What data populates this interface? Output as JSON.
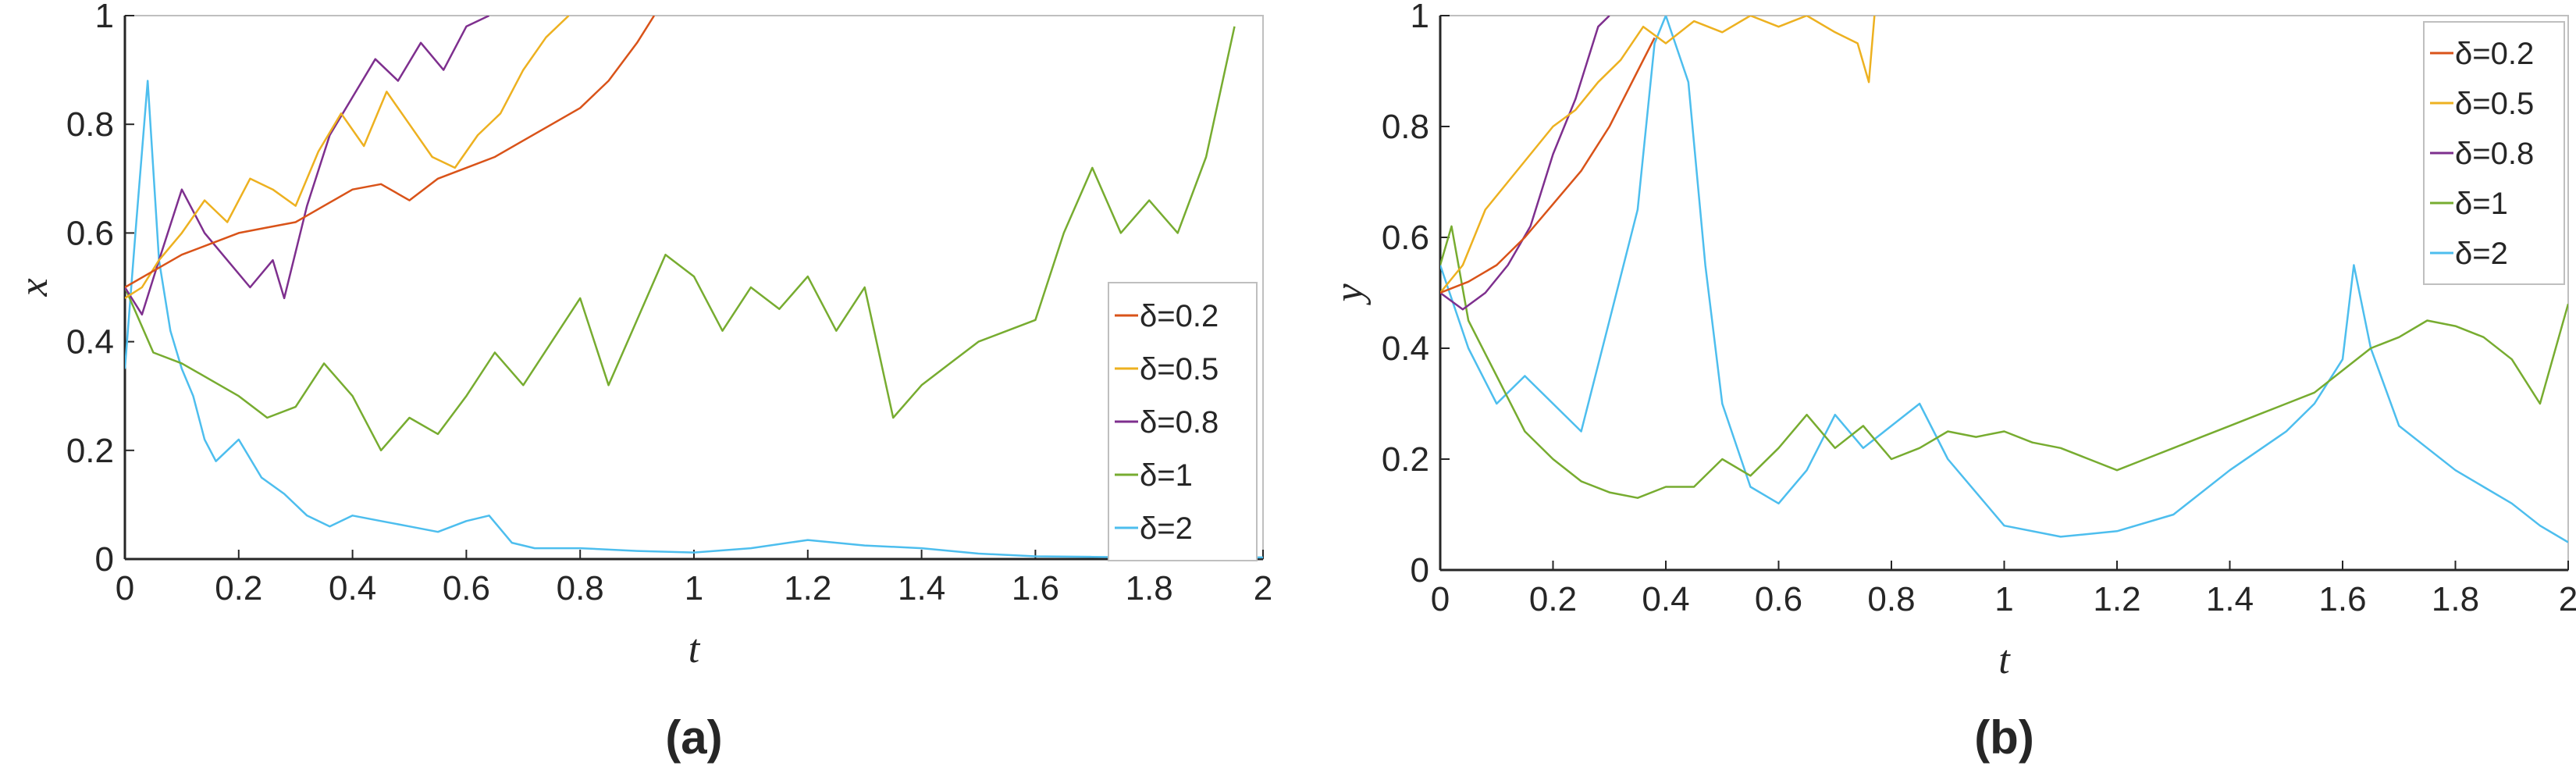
{
  "colors": {
    "d02": "#d95319",
    "d05": "#edb120",
    "d08": "#7e2f8e",
    "d1": "#77ac30",
    "d2": "#4dbeee",
    "axis": "#262626",
    "frame": "#bfbfbf"
  },
  "chart_data": [
    {
      "type": "line",
      "panel_label": "(a)",
      "xlabel": "t",
      "ylabel": "x",
      "xlim": [
        0,
        2
      ],
      "ylim": [
        0,
        1
      ],
      "xticks": [
        "0",
        "0.2",
        "0.4",
        "0.6",
        "0.8",
        "1",
        "1.2",
        "1.4",
        "1.6",
        "1.8",
        "2"
      ],
      "yticks": [
        "0",
        "0.2",
        "0.4",
        "0.6",
        "0.8",
        "1"
      ],
      "grid": false,
      "legend_position": "right-bottom",
      "series": [
        {
          "name": "δ=0.2",
          "color": "#d95319",
          "x": [
            0,
            0.05,
            0.1,
            0.15,
            0.2,
            0.25,
            0.3,
            0.35,
            0.4,
            0.45,
            0.5,
            0.55,
            0.6,
            0.65,
            0.7,
            0.75,
            0.8,
            0.85,
            0.9,
            0.93
          ],
          "y": [
            0.5,
            0.53,
            0.56,
            0.58,
            0.6,
            0.61,
            0.62,
            0.65,
            0.68,
            0.69,
            0.66,
            0.7,
            0.72,
            0.74,
            0.77,
            0.8,
            0.83,
            0.88,
            0.95,
            1.0
          ]
        },
        {
          "name": "δ=0.5",
          "color": "#edb120",
          "x": [
            0,
            0.03,
            0.06,
            0.1,
            0.14,
            0.18,
            0.22,
            0.26,
            0.3,
            0.34,
            0.38,
            0.42,
            0.46,
            0.5,
            0.54,
            0.58,
            0.62,
            0.66,
            0.7,
            0.74,
            0.78
          ],
          "y": [
            0.48,
            0.5,
            0.55,
            0.6,
            0.66,
            0.62,
            0.7,
            0.68,
            0.65,
            0.75,
            0.82,
            0.76,
            0.86,
            0.8,
            0.74,
            0.72,
            0.78,
            0.82,
            0.9,
            0.96,
            1.0
          ]
        },
        {
          "name": "δ=0.8",
          "color": "#7e2f8e",
          "x": [
            0,
            0.03,
            0.06,
            0.1,
            0.14,
            0.18,
            0.22,
            0.26,
            0.28,
            0.32,
            0.36,
            0.4,
            0.44,
            0.48,
            0.52,
            0.56,
            0.6,
            0.64
          ],
          "y": [
            0.5,
            0.45,
            0.55,
            0.68,
            0.6,
            0.55,
            0.5,
            0.55,
            0.48,
            0.65,
            0.78,
            0.85,
            0.92,
            0.88,
            0.95,
            0.9,
            0.98,
            1.0
          ]
        },
        {
          "name": "δ=1",
          "color": "#77ac30",
          "x": [
            0,
            0.05,
            0.1,
            0.15,
            0.2,
            0.25,
            0.3,
            0.35,
            0.4,
            0.45,
            0.5,
            0.55,
            0.6,
            0.65,
            0.7,
            0.75,
            0.8,
            0.85,
            0.9,
            0.95,
            1.0,
            1.05,
            1.1,
            1.15,
            1.2,
            1.25,
            1.3,
            1.35,
            1.4,
            1.45,
            1.5,
            1.55,
            1.6,
            1.65,
            1.7,
            1.75,
            1.8,
            1.85,
            1.9,
            1.95
          ],
          "y": [
            0.5,
            0.38,
            0.36,
            0.33,
            0.3,
            0.26,
            0.28,
            0.36,
            0.3,
            0.2,
            0.26,
            0.23,
            0.3,
            0.38,
            0.32,
            0.4,
            0.48,
            0.32,
            0.44,
            0.56,
            0.52,
            0.42,
            0.5,
            0.46,
            0.52,
            0.42,
            0.5,
            0.26,
            0.32,
            0.36,
            0.4,
            0.42,
            0.44,
            0.6,
            0.72,
            0.6,
            0.66,
            0.6,
            0.74,
            0.98
          ]
        },
        {
          "name": "δ=2",
          "color": "#4dbeee",
          "x": [
            0,
            0.02,
            0.04,
            0.06,
            0.08,
            0.1,
            0.12,
            0.14,
            0.16,
            0.18,
            0.2,
            0.24,
            0.28,
            0.32,
            0.36,
            0.4,
            0.45,
            0.5,
            0.55,
            0.6,
            0.64,
            0.68,
            0.72,
            0.8,
            0.9,
            1.0,
            1.1,
            1.2,
            1.25,
            1.3,
            1.4,
            1.5,
            1.6,
            1.7,
            1.8,
            1.9,
            2.0
          ],
          "y": [
            0.35,
            0.62,
            0.88,
            0.55,
            0.42,
            0.35,
            0.3,
            0.22,
            0.18,
            0.2,
            0.22,
            0.15,
            0.12,
            0.08,
            0.06,
            0.08,
            0.07,
            0.06,
            0.05,
            0.07,
            0.08,
            0.03,
            0.02,
            0.02,
            0.015,
            0.012,
            0.02,
            0.035,
            0.03,
            0.025,
            0.02,
            0.01,
            0.005,
            0.004,
            0.003,
            0.003,
            0.003
          ]
        }
      ]
    },
    {
      "type": "line",
      "panel_label": "(b)",
      "xlabel": "t",
      "ylabel": "y",
      "xlim": [
        0,
        2
      ],
      "ylim": [
        0,
        1
      ],
      "xticks": [
        "0",
        "0.2",
        "0.4",
        "0.6",
        "0.8",
        "1",
        "1.2",
        "1.4",
        "1.6",
        "1.8",
        "2"
      ],
      "yticks": [
        "0",
        "0.2",
        "0.4",
        "0.6",
        "0.8",
        "1"
      ],
      "grid": false,
      "legend_position": "top-right",
      "series": [
        {
          "name": "δ=0.2",
          "color": "#d95319",
          "x": [
            0,
            0.05,
            0.1,
            0.15,
            0.2,
            0.25,
            0.3,
            0.35,
            0.38
          ],
          "y": [
            0.5,
            0.52,
            0.55,
            0.6,
            0.66,
            0.72,
            0.8,
            0.9,
            0.96
          ]
        },
        {
          "name": "δ=0.5",
          "color": "#edb120",
          "x": [
            0,
            0.04,
            0.08,
            0.12,
            0.16,
            0.2,
            0.24,
            0.28,
            0.32,
            0.36,
            0.4,
            0.45,
            0.5,
            0.55,
            0.6,
            0.65,
            0.7,
            0.74,
            0.76,
            0.77
          ],
          "y": [
            0.5,
            0.55,
            0.65,
            0.7,
            0.75,
            0.8,
            0.83,
            0.88,
            0.92,
            0.98,
            0.95,
            0.99,
            0.97,
            1.0,
            0.98,
            1.0,
            0.97,
            0.95,
            0.88,
            1.0
          ]
        },
        {
          "name": "δ=0.8",
          "color": "#7e2f8e",
          "x": [
            0,
            0.04,
            0.08,
            0.12,
            0.16,
            0.2,
            0.24,
            0.28,
            0.3
          ],
          "y": [
            0.5,
            0.47,
            0.5,
            0.55,
            0.62,
            0.75,
            0.85,
            0.98,
            1.0
          ]
        },
        {
          "name": "δ=1",
          "color": "#77ac30",
          "x": [
            0,
            0.02,
            0.05,
            0.1,
            0.15,
            0.2,
            0.25,
            0.3,
            0.35,
            0.4,
            0.45,
            0.5,
            0.55,
            0.6,
            0.65,
            0.7,
            0.75,
            0.8,
            0.85,
            0.9,
            0.95,
            1.0,
            1.05,
            1.1,
            1.15,
            1.2,
            1.25,
            1.3,
            1.35,
            1.4,
            1.45,
            1.5,
            1.55,
            1.6,
            1.65,
            1.7,
            1.75,
            1.8,
            1.85,
            1.9,
            1.95,
            2.0
          ],
          "y": [
            0.55,
            0.62,
            0.45,
            0.35,
            0.25,
            0.2,
            0.16,
            0.14,
            0.13,
            0.15,
            0.15,
            0.2,
            0.17,
            0.22,
            0.28,
            0.22,
            0.26,
            0.2,
            0.22,
            0.25,
            0.24,
            0.25,
            0.23,
            0.22,
            0.2,
            0.18,
            0.2,
            0.22,
            0.24,
            0.26,
            0.28,
            0.3,
            0.32,
            0.36,
            0.4,
            0.42,
            0.45,
            0.44,
            0.42,
            0.38,
            0.3,
            0.48
          ]
        },
        {
          "name": "δ=2",
          "color": "#4dbeee",
          "x": [
            0,
            0.05,
            0.1,
            0.15,
            0.2,
            0.25,
            0.3,
            0.35,
            0.38,
            0.4,
            0.44,
            0.47,
            0.5,
            0.55,
            0.6,
            0.65,
            0.7,
            0.75,
            0.8,
            0.85,
            0.9,
            1.0,
            1.1,
            1.2,
            1.3,
            1.4,
            1.5,
            1.55,
            1.6,
            1.62,
            1.65,
            1.7,
            1.75,
            1.8,
            1.85,
            1.9,
            1.95,
            2.0
          ],
          "y": [
            0.55,
            0.4,
            0.3,
            0.35,
            0.3,
            0.25,
            0.45,
            0.65,
            0.95,
            1.0,
            0.88,
            0.55,
            0.3,
            0.15,
            0.12,
            0.18,
            0.28,
            0.22,
            0.26,
            0.3,
            0.2,
            0.08,
            0.06,
            0.07,
            0.1,
            0.18,
            0.25,
            0.3,
            0.38,
            0.55,
            0.4,
            0.26,
            0.22,
            0.18,
            0.15,
            0.12,
            0.08,
            0.05
          ]
        }
      ]
    }
  ]
}
